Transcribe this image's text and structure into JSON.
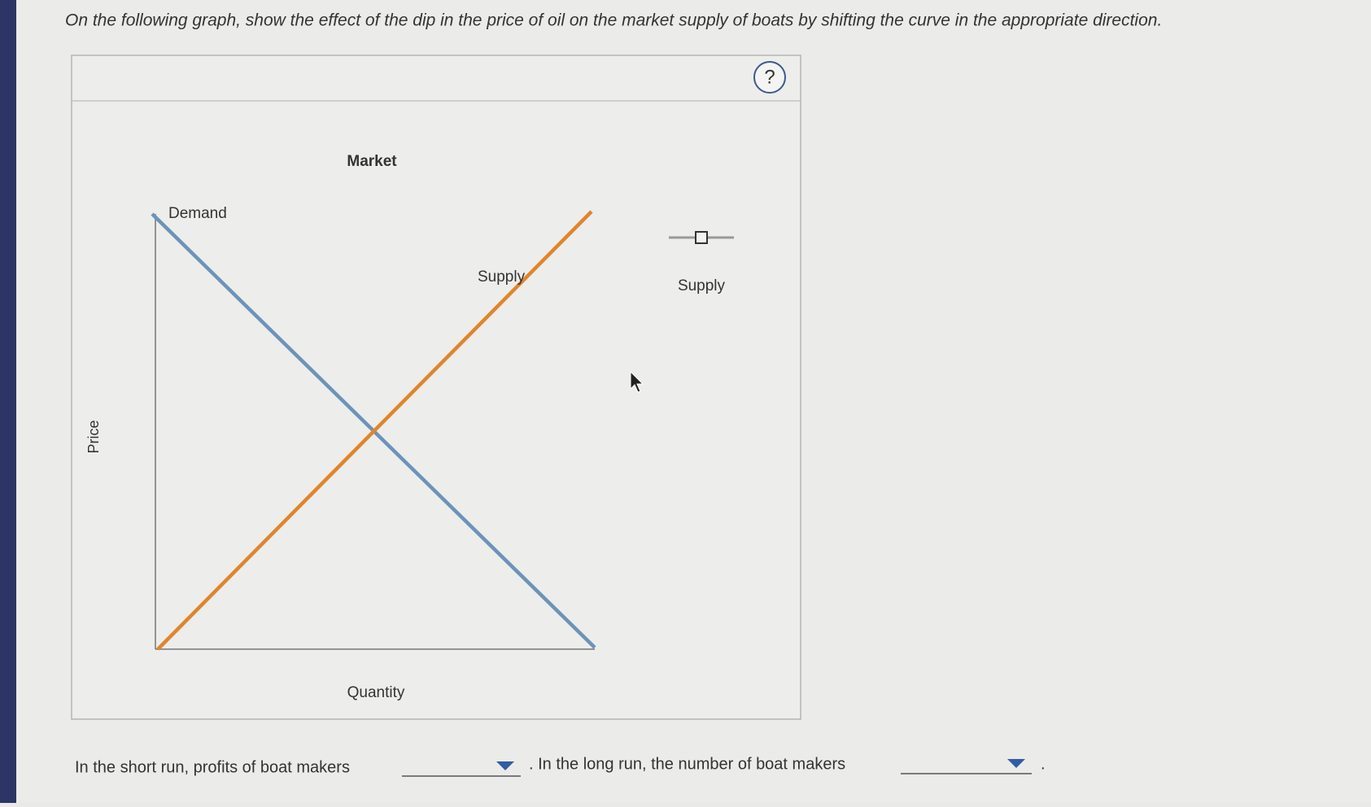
{
  "question": {
    "instruction": "On the following graph, show the effect of the dip in the price of oil on the market supply of boats by shifting the curve in the appropriate direction."
  },
  "graph": {
    "help": "?",
    "title": "Market",
    "y_axis_label": "Price",
    "x_axis_label": "Quantity",
    "curves": {
      "demand": "Demand",
      "supply": "Supply"
    },
    "palette": {
      "tool_label": "Supply"
    }
  },
  "answer": {
    "sentence_1": "In the short run, profits of boat makers",
    "sentence_2": ". In the long run, the number of boat makers",
    "end": "."
  }
}
